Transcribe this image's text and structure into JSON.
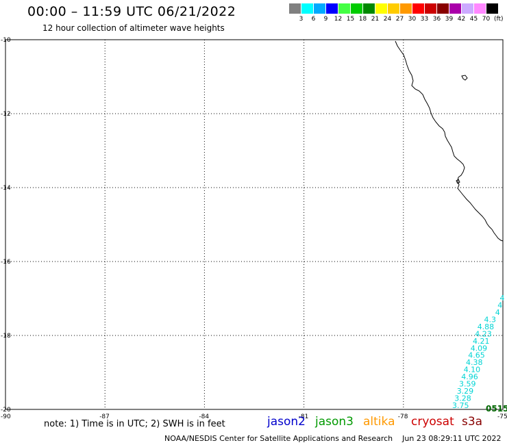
{
  "header": {
    "title": "00:00 – 11:59 UTC 06/21/2022",
    "subtitle": "12 hour collection of altimeter wave heights"
  },
  "legend": {
    "colors": [
      "#808080",
      "#00ffff",
      "#00aaff",
      "#0000ff",
      "#44ff44",
      "#00cc00",
      "#008800",
      "#ffff00",
      "#ffcc00",
      "#ff9900",
      "#ff0000",
      "#cc0000",
      "#880000",
      "#aa00aa",
      "#ccaaff",
      "#ff88ff",
      "#000000"
    ],
    "labels": [
      "3",
      "6",
      "9",
      "12",
      "15",
      "18",
      "21",
      "24",
      "27",
      "30",
      "33",
      "36",
      "39",
      "42",
      "45",
      "70"
    ],
    "unit": "(ft)"
  },
  "axes": {
    "lat_labels": [
      "-10",
      "-12",
      "-14",
      "-16",
      "-18",
      "-20"
    ],
    "lon_labels": [
      "-90",
      "-87",
      "-84",
      "-81",
      "-78",
      "-75"
    ]
  },
  "wave_values": [
    "4",
    "4",
    "4",
    "4.3",
    "4.88",
    "4.23",
    "4.21",
    "4.09",
    "4.65",
    "4.38",
    "4.10",
    "4.96",
    "3.59",
    "3.29",
    "3.28",
    "3.75"
  ],
  "pass_time": "0515",
  "note": "note: 1) Time is in UTC; 2) SWH is in feet",
  "missions": {
    "jason2": {
      "label": "jason2",
      "color": "#0000cc"
    },
    "jason3": {
      "label": "jason3",
      "color": "#009900"
    },
    "altika": {
      "label": "altika",
      "color": "#ff9900"
    },
    "cryosat": {
      "label": "cryosat",
      "color": "#cc0000"
    },
    "s3a": {
      "label": "s3a",
      "color": "#880000"
    }
  },
  "footer": {
    "credit": "NOAA/NESDIS Center for Satellite Applications and Research",
    "timestamp": "Jun 23 08:29:11 UTC 2022"
  }
}
